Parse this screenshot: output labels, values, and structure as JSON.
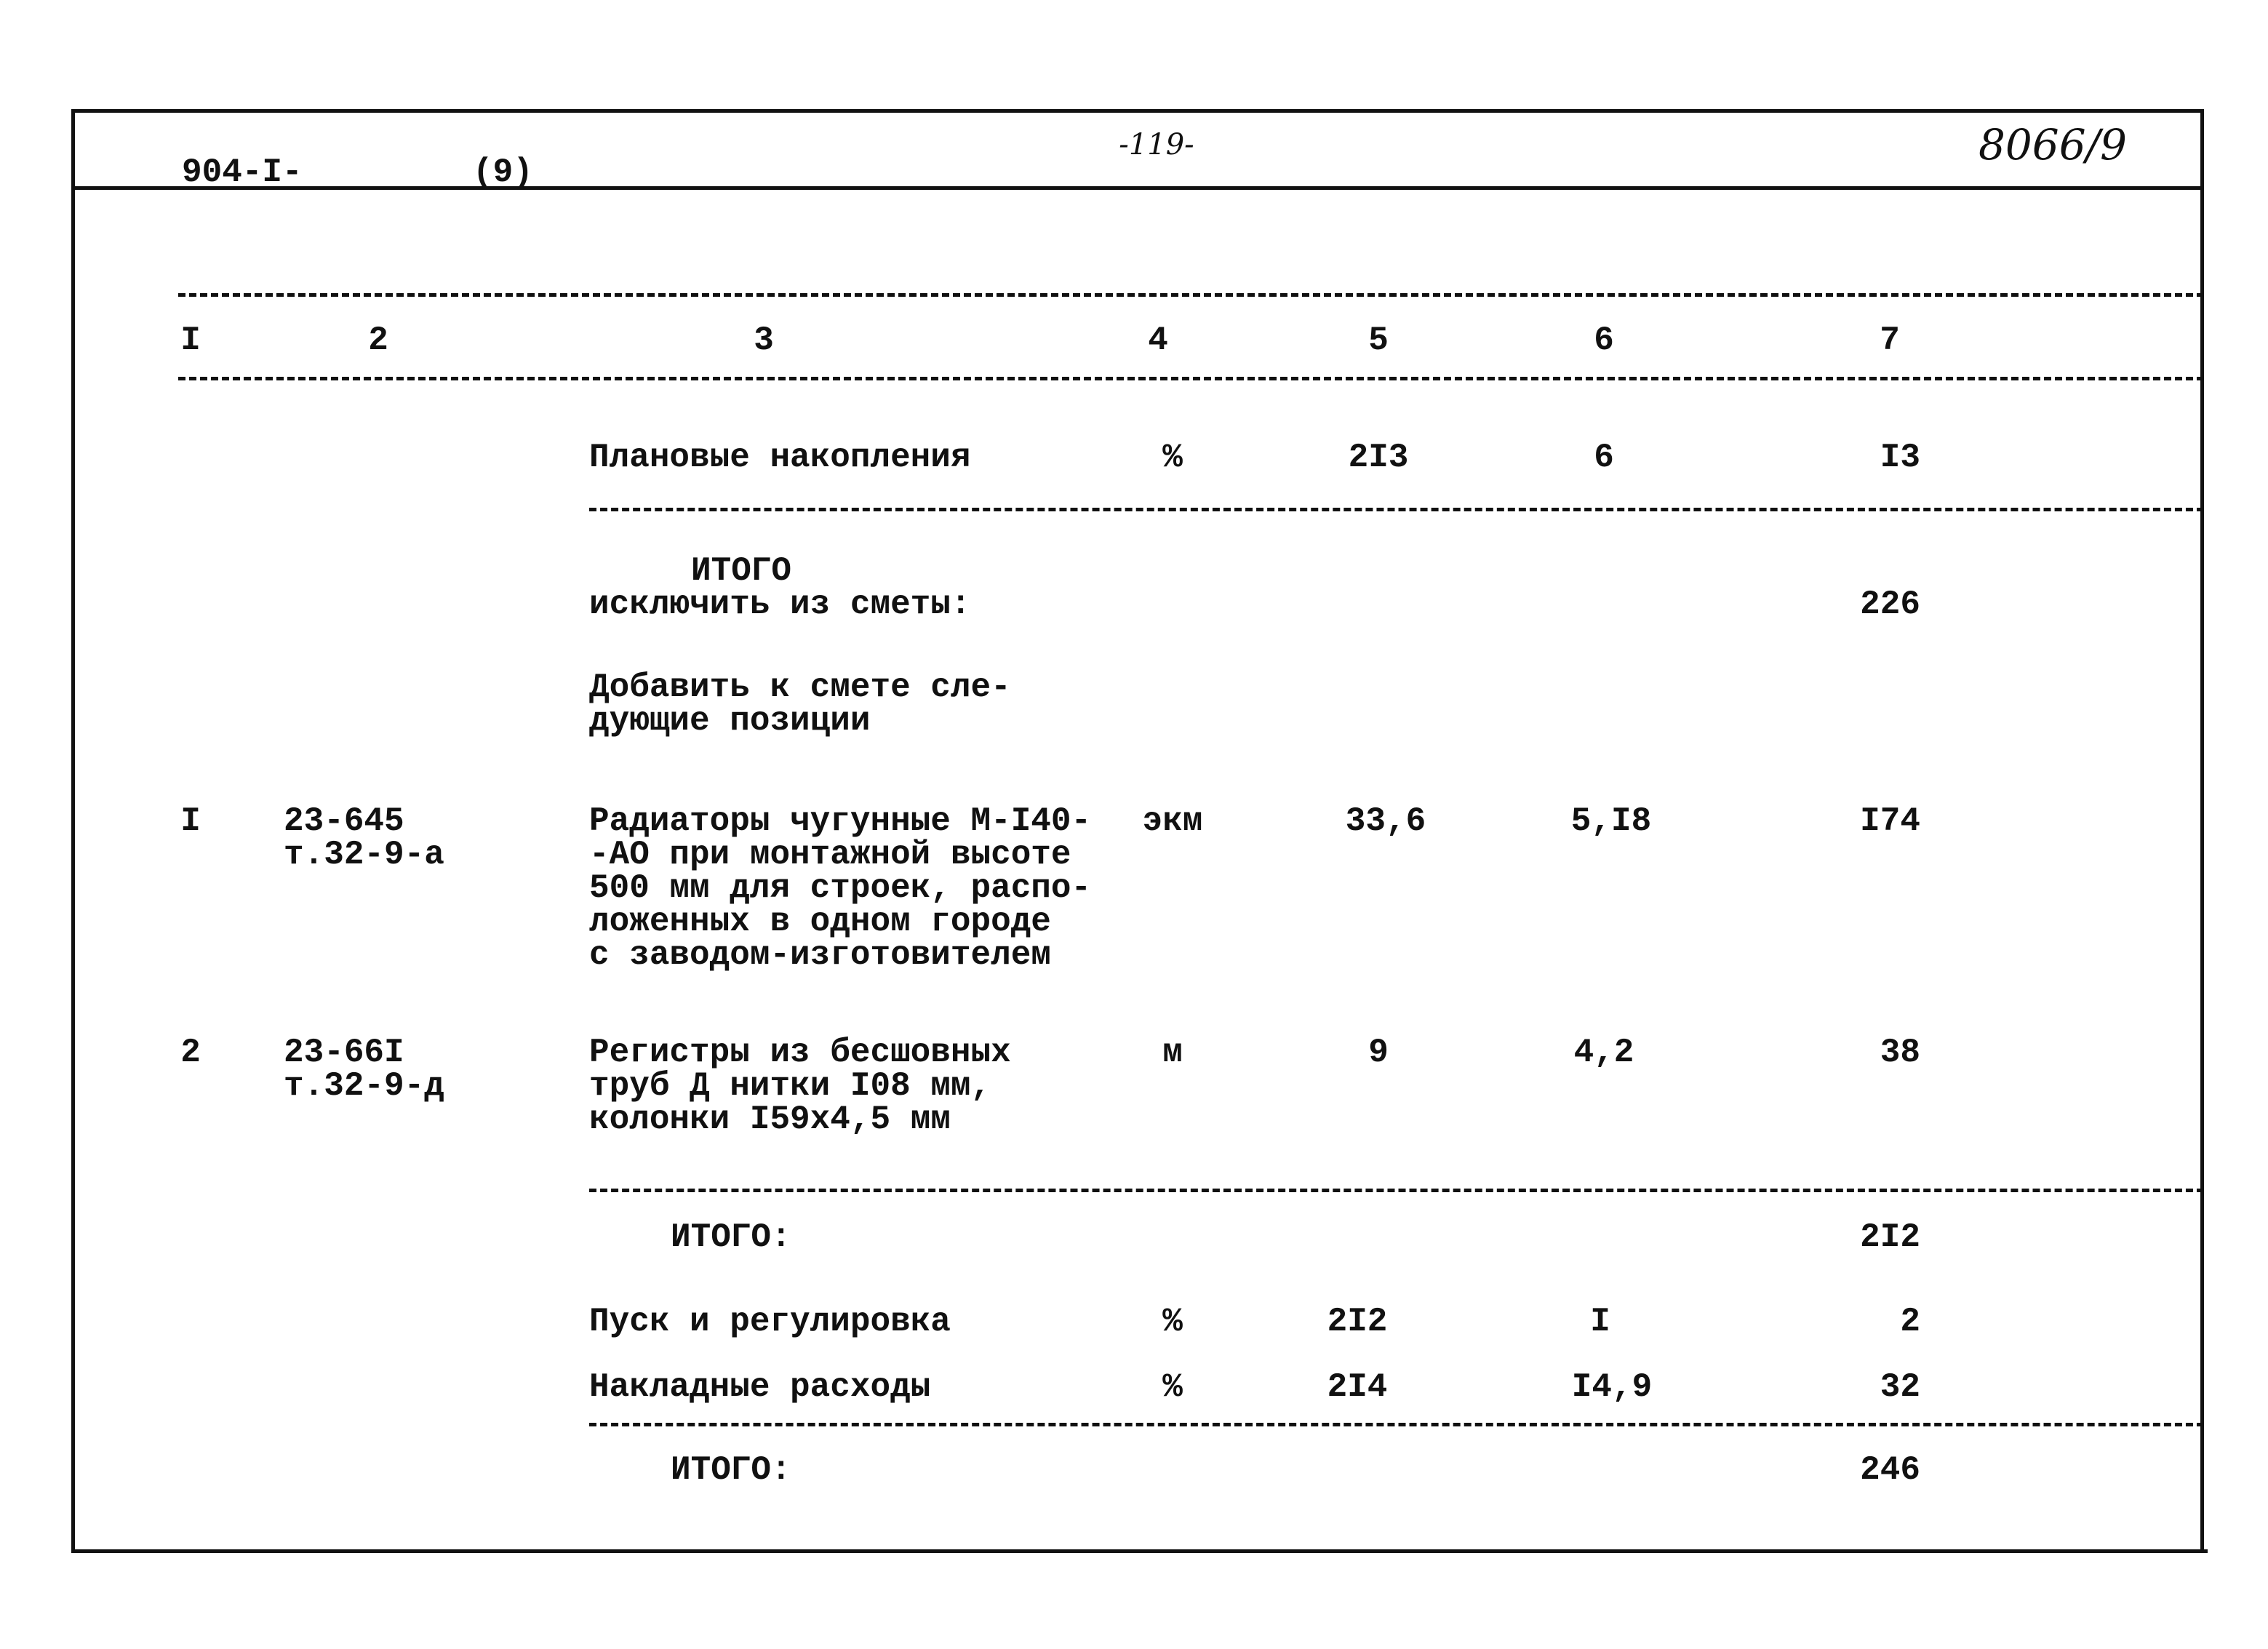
{
  "header": {
    "doc_code": "904-I-",
    "doc_part": "(9)",
    "page_number": "-119-",
    "archive_number": "8066/9"
  },
  "column_numbers": [
    "I",
    "2",
    "3",
    "4",
    "5",
    "6",
    "7"
  ],
  "planned_savings": {
    "name": "Плановые накопления",
    "unit": "%",
    "col5": "2I3",
    "col6": "6",
    "col7": "I3"
  },
  "total_exclude": {
    "line1": "ИТОГО",
    "line2": "исключить из сметы:",
    "col7": "226"
  },
  "add_note": {
    "line1": "Добавить к смете сле-",
    "line2": "дующие позиции"
  },
  "items": [
    {
      "no": "I",
      "code": [
        "23-645",
        "т.32-9-а"
      ],
      "name": [
        "Радиаторы чугунные М-I40-",
        "-АО при монтажной высоте",
        "500 мм для строек, распо-",
        "ложенных в одном городе",
        "с заводом-изготовителем"
      ],
      "unit": "экм",
      "col5": "33,6",
      "col6": "5,I8",
      "col7": "I74"
    },
    {
      "no": "2",
      "code": [
        "23-66I",
        "т.32-9-д"
      ],
      "name": [
        "Регистры из бесшовных",
        "труб Д нитки I08 мм,",
        "колонки I59x4,5 мм"
      ],
      "unit": "м",
      "col5": "9",
      "col6": "4,2",
      "col7": "38"
    }
  ],
  "subtotal": {
    "label": "ИТОГО:",
    "col7": "2I2"
  },
  "startup": {
    "name": "Пуск и регулировка",
    "unit": "%",
    "col5": "2I2",
    "col6": "I",
    "col7": "2"
  },
  "overhead": {
    "name": "Накладные расходы",
    "unit": "%",
    "col5": "2I4",
    "col6": "I4,9",
    "col7": "32"
  },
  "total": {
    "label": "ИТОГО:",
    "col7": "246"
  }
}
